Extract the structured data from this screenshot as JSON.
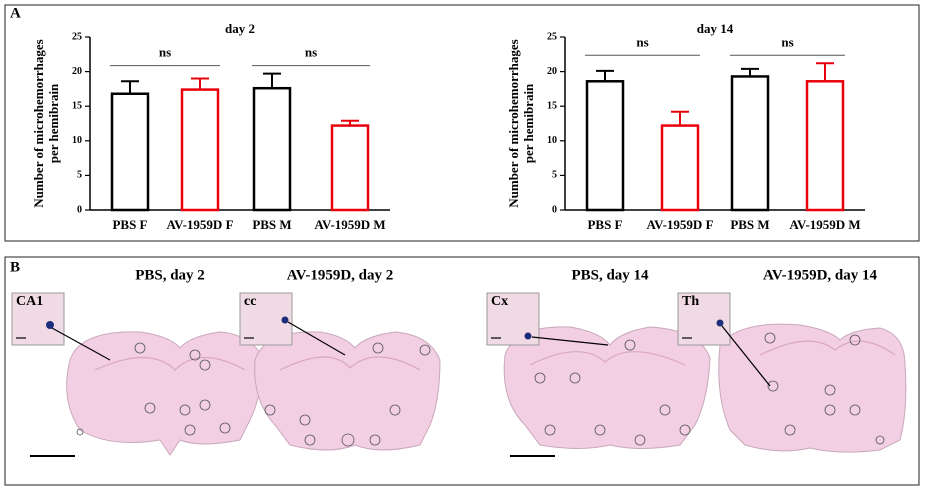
{
  "panels": {
    "a": "A",
    "b": "B"
  },
  "chart_data": [
    {
      "type": "bar",
      "title": "day 2",
      "y_label": [
        "Number of microhemorrhages",
        "per hemibrain"
      ],
      "categories": [
        "PBS F",
        "AV-1959D F",
        "PBS M",
        "AV-1959D M"
      ],
      "values": [
        16.8,
        17.4,
        17.6,
        12.2
      ],
      "errors": [
        1.8,
        1.6,
        2.1,
        0.7
      ],
      "colors": [
        "#000000",
        "#e8000b",
        "#000000",
        "#e8000b"
      ],
      "ylim": [
        0,
        25
      ],
      "yticks": [
        0,
        5,
        10,
        15,
        20,
        25
      ],
      "annotations": [
        {
          "text": "ns",
          "between": [
            "PBS F",
            "AV-1959D F"
          ]
        },
        {
          "text": "ns",
          "between": [
            "PBS M",
            "AV-1959D M"
          ]
        }
      ]
    },
    {
      "type": "bar",
      "title": "day 14",
      "y_label": [
        "Number of microhemorrhages",
        "per hemibrain"
      ],
      "categories": [
        "PBS F",
        "AV-1959D F",
        "PBS M",
        "AV-1959D M"
      ],
      "values": [
        18.6,
        12.2,
        19.3,
        18.6
      ],
      "errors": [
        1.5,
        2.0,
        1.1,
        2.6
      ],
      "colors": [
        "#000000",
        "#e8000b",
        "#000000",
        "#e8000b"
      ],
      "ylim": [
        0,
        25
      ],
      "yticks": [
        0,
        5,
        10,
        15,
        20,
        25
      ],
      "annotations": [
        {
          "text": "ns",
          "between": [
            "PBS F",
            "AV-1959D F"
          ]
        },
        {
          "text": "ns",
          "between": [
            "PBS M",
            "AV-1959D M"
          ]
        }
      ]
    }
  ],
  "sections": [
    {
      "title": "PBS, day 2",
      "inset": "CA1"
    },
    {
      "title": "AV-1959D, day 2",
      "inset": "cc"
    },
    {
      "title": "PBS, day 14",
      "inset": "Cx"
    },
    {
      "title": "AV-1959D, day 14",
      "inset": "Th"
    }
  ]
}
